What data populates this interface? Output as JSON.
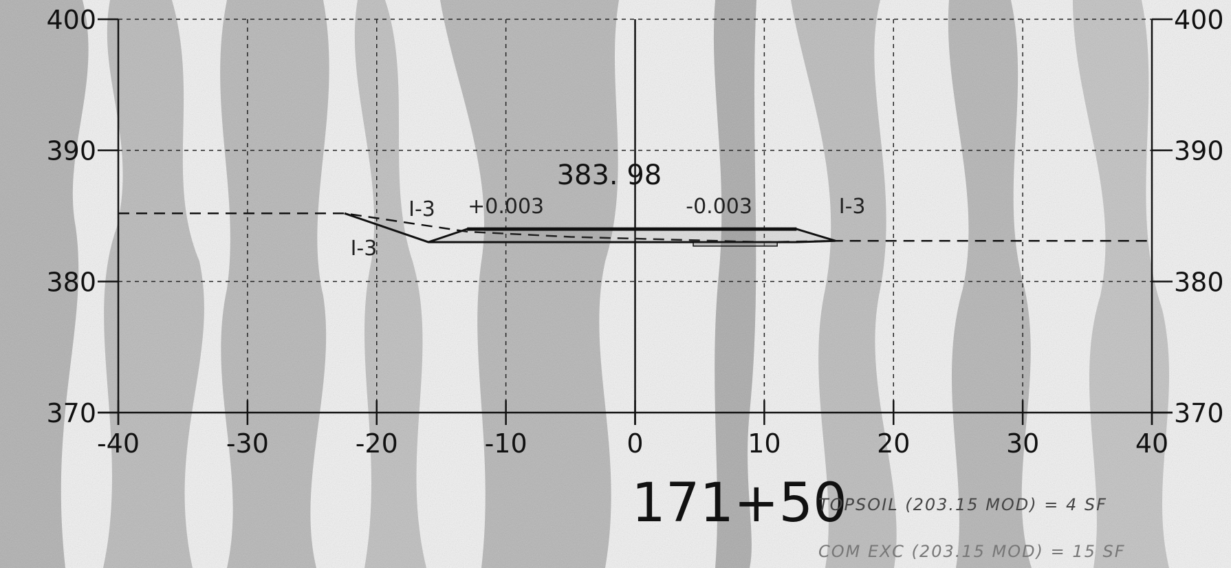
{
  "colors": {
    "paper": "#f2f2f2",
    "shade": "#9a9a9a",
    "ink": "#111111",
    "grid": "#222222",
    "handwriting": "#444444"
  },
  "plot": {
    "x_range": [
      -40,
      40
    ],
    "y_range": [
      370,
      400
    ],
    "x_ticks": [
      -40,
      -30,
      -20,
      -10,
      0,
      10,
      20,
      30,
      40
    ],
    "y_ticks": [
      370,
      380,
      390,
      400
    ],
    "grid": "dashed",
    "x_tick_labels": [
      "-40",
      "-30",
      "-20",
      "-10",
      "0",
      "10",
      "20",
      "30",
      "40"
    ],
    "y_tick_labels_left": [
      "370",
      "380",
      "390",
      "400"
    ],
    "y_tick_labels_right": [
      "370",
      "380",
      "390",
      "400"
    ]
  },
  "profile": {
    "existing_ground": [
      [
        -40,
        385.2
      ],
      [
        -22.5,
        385.2
      ],
      [
        -13,
        383.8
      ],
      [
        -5,
        383.4
      ],
      [
        10,
        383.0
      ],
      [
        15.5,
        383.1
      ],
      [
        40,
        383.1
      ]
    ],
    "proposed_section": [
      [
        -22.5,
        385.2
      ],
      [
        -16,
        383.0
      ],
      [
        -13,
        384.0
      ],
      [
        12.5,
        384.0
      ],
      [
        15.5,
        383.1
      ],
      [
        12.5,
        383.0
      ],
      [
        -16,
        383.0
      ]
    ],
    "subbase_box": [
      [
        4.5,
        382.7
      ],
      [
        11,
        383.0
      ]
    ]
  },
  "annotations": {
    "elevation": "383. 98",
    "slope_left": "+0.003",
    "slope_right": "-0.003",
    "side_slope_upper_left": "I-3",
    "side_slope_lower_left": "I-3",
    "side_slope_right": "I-3"
  },
  "station": "171+50",
  "notes": {
    "topsoil": "TOPSOIL (203.15 MOD) = 4 SF",
    "common_exc": "COM EXC (203.15 MOD) = 15 SF"
  }
}
